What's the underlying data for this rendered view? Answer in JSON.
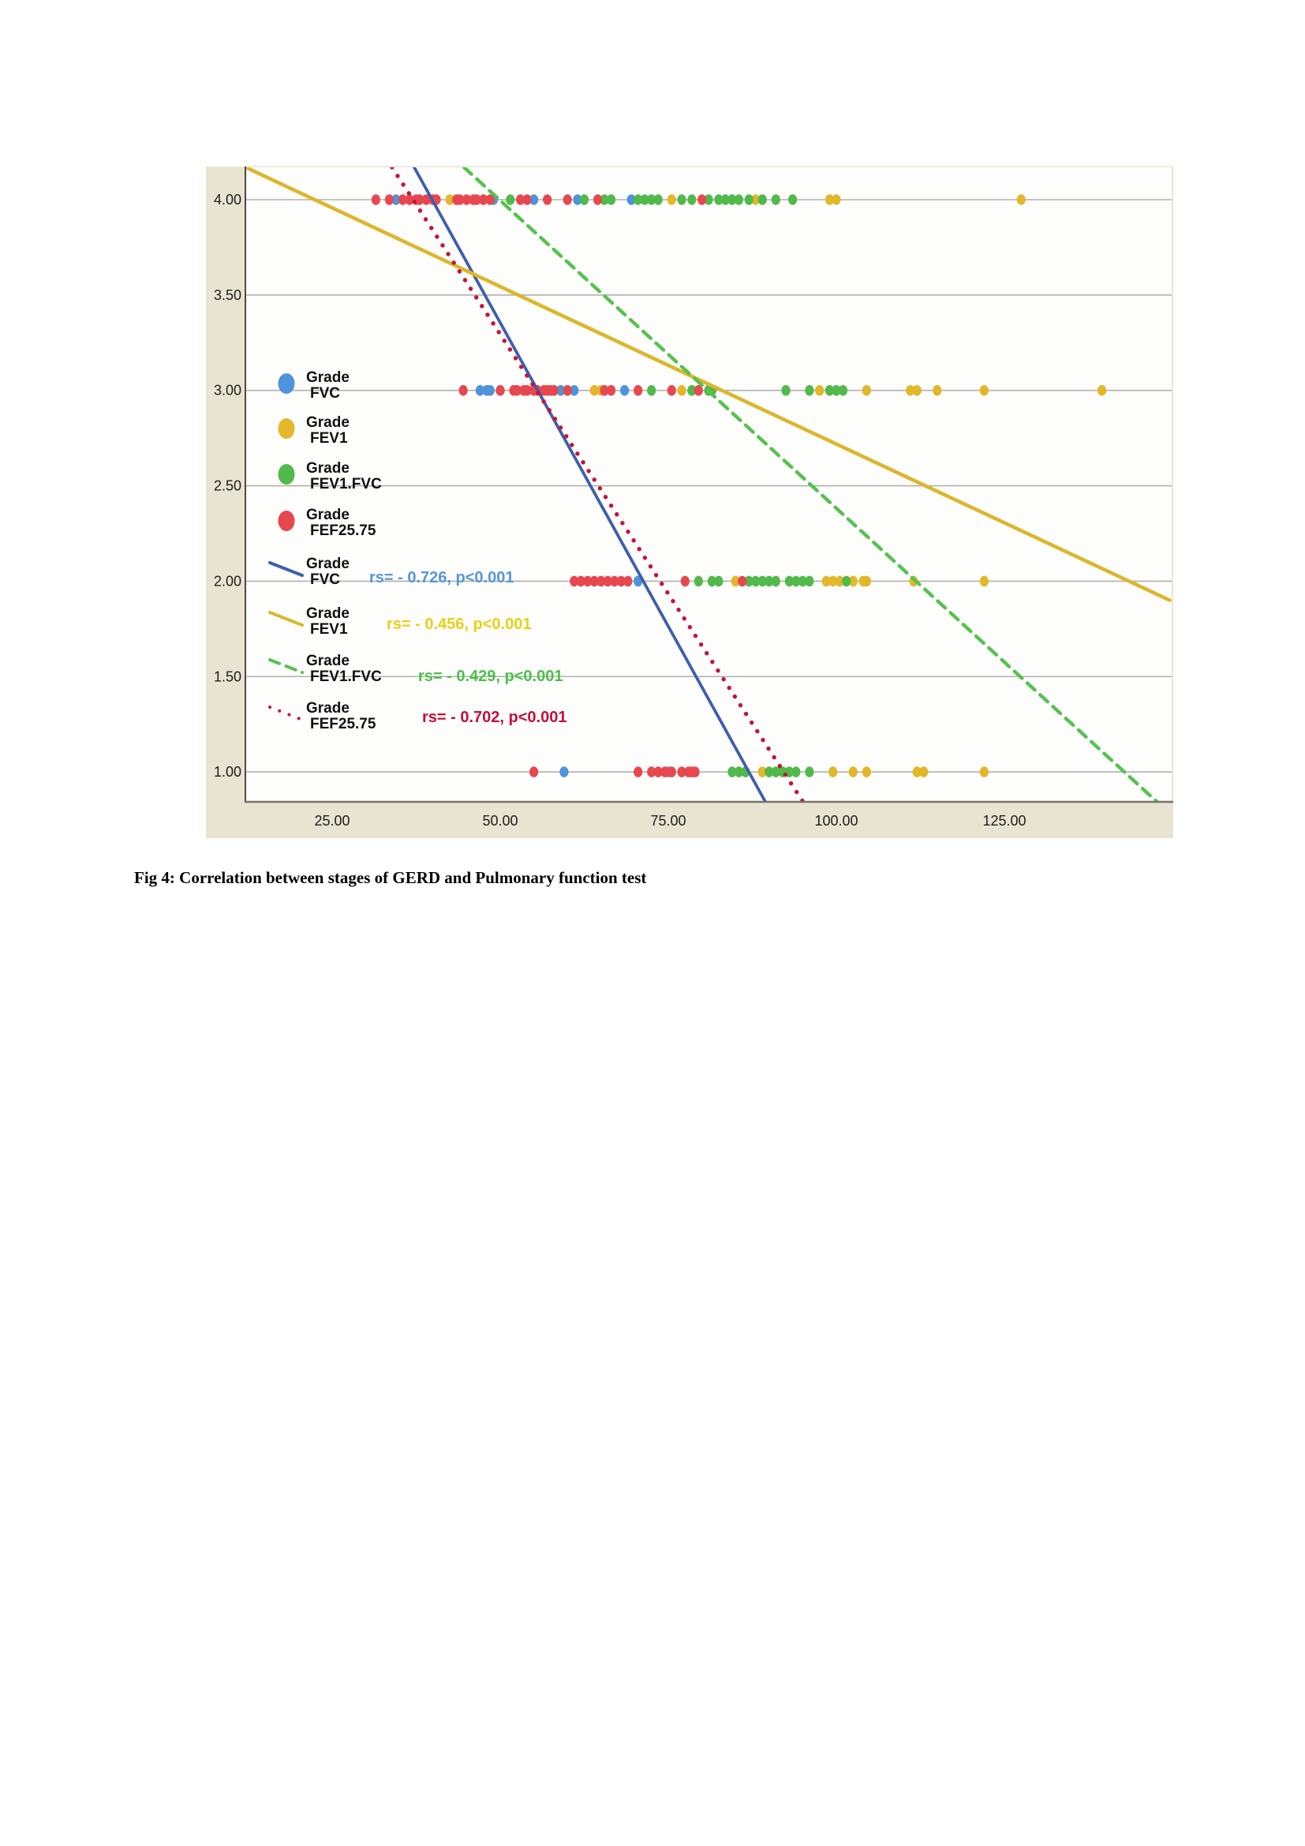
{
  "figure": {
    "caption": "Fig 4: Correlation between stages of GERD and Pulmonary function test"
  },
  "chart_data": {
    "type": "scatter",
    "title": "",
    "xlabel": "",
    "ylabel": "",
    "xlim": [
      12,
      150
    ],
    "ylim": [
      0.84,
      4.17
    ],
    "grid": true,
    "x_ticks": [
      25,
      50,
      75,
      100,
      125
    ],
    "x_tick_labels": [
      "25.00",
      "50.00",
      "75.00",
      "100.00",
      "125.00"
    ],
    "y_ticks": [
      4.0,
      3.5,
      3.0,
      2.5,
      2.0,
      1.5,
      1.0
    ],
    "y_tick_labels": [
      "4.00",
      "3.50",
      "3.00",
      "2.50",
      "2.00",
      "1.50",
      "1.00"
    ],
    "colors": {
      "beige_frame": "#e9e4d1",
      "plot_background": "#fdfdfc",
      "gridline": "#b3b1ac",
      "axis_left": "#4a4a46",
      "axis_bottom": "#76736a",
      "tick_text": "#1c1c1c",
      "legend_text": "#111111"
    },
    "series": [
      {
        "name": "Grade FVC",
        "color": "#4d94da",
        "points_by_grade": {
          "4": [
            34.5,
            49,
            55,
            61.5,
            69.5
          ],
          "3": [
            47,
            48,
            48.5,
            50,
            59,
            61,
            68.5
          ],
          "2": [
            70.5
          ],
          "1": [
            59.5,
            75
          ]
        }
      },
      {
        "name": "Grade FEV1",
        "color": "#e2b729",
        "points_by_grade": {
          "4": [
            42.5,
            75.5,
            88,
            99,
            100,
            127.5
          ],
          "3": [
            64,
            65,
            77,
            97.5,
            104.5,
            111,
            112,
            115,
            122,
            139.5
          ],
          "2": [
            85,
            98.5,
            99.5,
            100.5,
            102.5,
            104,
            104.5,
            111.5,
            122
          ],
          "1": [
            89,
            99.5,
            102.5,
            104.5,
            112,
            113,
            122
          ]
        }
      },
      {
        "name": "Grade FEV1.FVC",
        "color": "#52b94b",
        "points_by_grade": {
          "4": [
            51.5,
            62.5,
            65.5,
            66.5,
            70.5,
            71.5,
            72.5,
            73.5,
            77,
            78.5,
            81,
            82.5,
            83.5,
            84.5,
            85.5,
            87,
            89,
            91,
            93.5
          ],
          "3": [
            72.5,
            78.5,
            81,
            81.5,
            92.5,
            96,
            99,
            100,
            101
          ],
          "2": [
            79.5,
            81.5,
            82.5,
            87,
            88,
            89,
            90,
            91,
            93,
            94,
            95,
            96,
            101.5
          ],
          "1": [
            84.5,
            85.5,
            86.5,
            90,
            91,
            92,
            93,
            94,
            96
          ]
        }
      },
      {
        "name": "Grade FEF25.75",
        "color": "#e7484f",
        "points_by_grade": {
          "4": [
            31.5,
            33.5,
            35.5,
            36.5,
            37.5,
            38,
            39,
            40,
            40.5,
            43.5,
            44,
            45,
            46,
            46.5,
            47.5,
            48.5,
            53,
            54,
            57,
            60,
            64.5,
            80
          ],
          "3": [
            44.5,
            50,
            52,
            52.5,
            53.5,
            54,
            55,
            55.5,
            56.5,
            57,
            57.5,
            58,
            60,
            65.5,
            66.5,
            70.5,
            75.5,
            79.5
          ],
          "2": [
            61,
            62,
            63,
            64,
            65,
            66,
            67,
            68,
            69,
            77.5,
            86
          ],
          "1": [
            55,
            70.5,
            72.5,
            73.5,
            74.5,
            75.5,
            77,
            78,
            78.5,
            79
          ]
        }
      }
    ],
    "fit_lines": [
      {
        "name": "Grade FVC",
        "style": "solid",
        "color": "#3d5fad",
        "annotation": "rs= - 0.726, p<0.001",
        "annotation_color": "#5596dd",
        "x1": 37.2,
        "y1": 4.17,
        "x2": 89.5,
        "y2": 0.84
      },
      {
        "name": "Grade FEV1",
        "style": "solid",
        "color": "#dcb62c",
        "annotation": "rs= - 0.456, p<0.001",
        "annotation_color": "#e7d117",
        "x1": 12.1,
        "y1": 4.17,
        "x2": 149.6,
        "y2": 1.9
      },
      {
        "name": "Grade FEV1.FVC",
        "style": "dashed",
        "color": "#55c24e",
        "annotation": "rs= - 0.429, p<0.001",
        "annotation_color": "#4cbf4b",
        "x1": 44.6,
        "y1": 4.17,
        "x2": 147.8,
        "y2": 0.84
      },
      {
        "name": "Grade FEF25.75",
        "style": "dotted",
        "color": "#c6133b",
        "annotation": "rs= - 0.702, p<0.001",
        "annotation_color": "#c2113a",
        "x1": 33.9,
        "y1": 4.17,
        "x2": 95.1,
        "y2": 0.84
      }
    ],
    "legend": {
      "marker_entries": [
        {
          "line1": "Grade",
          "line2": "FVC",
          "color": "#4d94da"
        },
        {
          "line1": "Grade",
          "line2": "FEV1",
          "color": "#e2b729"
        },
        {
          "line1": "Grade",
          "line2": "FEV1.FVC",
          "color": "#52b94b"
        },
        {
          "line1": "Grade",
          "line2": "FEF25.75",
          "color": "#e7484f"
        }
      ],
      "line_entries": [
        {
          "line1": "Grade",
          "line2": "FVC",
          "color": "#3d5fad",
          "style": "solid"
        },
        {
          "line1": "Grade",
          "line2": "FEV1",
          "color": "#dcb62c",
          "style": "solid"
        },
        {
          "line1": "Grade",
          "line2": "FEV1.FVC",
          "color": "#55c24e",
          "style": "dashed"
        },
        {
          "line1": "Grade",
          "line2": "FEF25.75",
          "color": "#c6133b",
          "style": "dotted"
        }
      ],
      "legend_position": "middle-left"
    }
  }
}
